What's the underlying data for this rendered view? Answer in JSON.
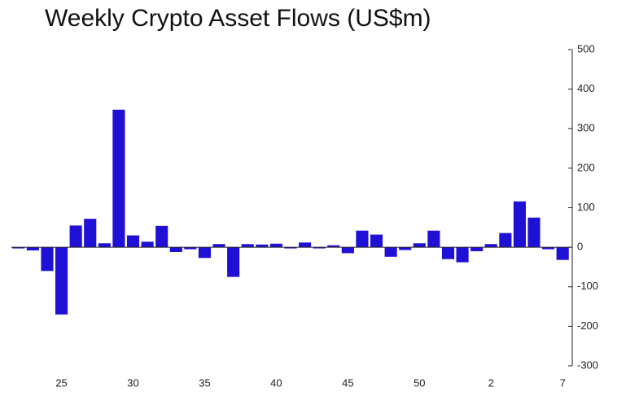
{
  "chart_data": {
    "type": "bar",
    "title": "Weekly Crypto Asset Flows (US$m)",
    "categories": [
      null,
      null,
      null,
      "25",
      null,
      null,
      null,
      null,
      "30",
      null,
      null,
      null,
      null,
      "35",
      null,
      null,
      null,
      null,
      "40",
      null,
      null,
      null,
      null,
      "45",
      null,
      null,
      null,
      null,
      "50",
      null,
      null,
      null,
      null,
      "2",
      null,
      null,
      null,
      null,
      "7"
    ],
    "values": [
      -3,
      -8,
      -60,
      -170,
      55,
      72,
      10,
      348,
      30,
      14,
      54,
      -12,
      -5,
      -27,
      8,
      -75,
      8,
      7,
      9,
      -3,
      12,
      -3,
      5,
      -15,
      42,
      32,
      -24,
      -7,
      10,
      42,
      -30,
      -38,
      -10,
      8,
      36,
      116,
      75,
      -5,
      -32
    ],
    "color": "#1f10d6",
    "ylim": [
      -300,
      500
    ],
    "yticks": [
      -300,
      -200,
      -100,
      0,
      100,
      200,
      300,
      400,
      500
    ],
    "grid": false
  }
}
